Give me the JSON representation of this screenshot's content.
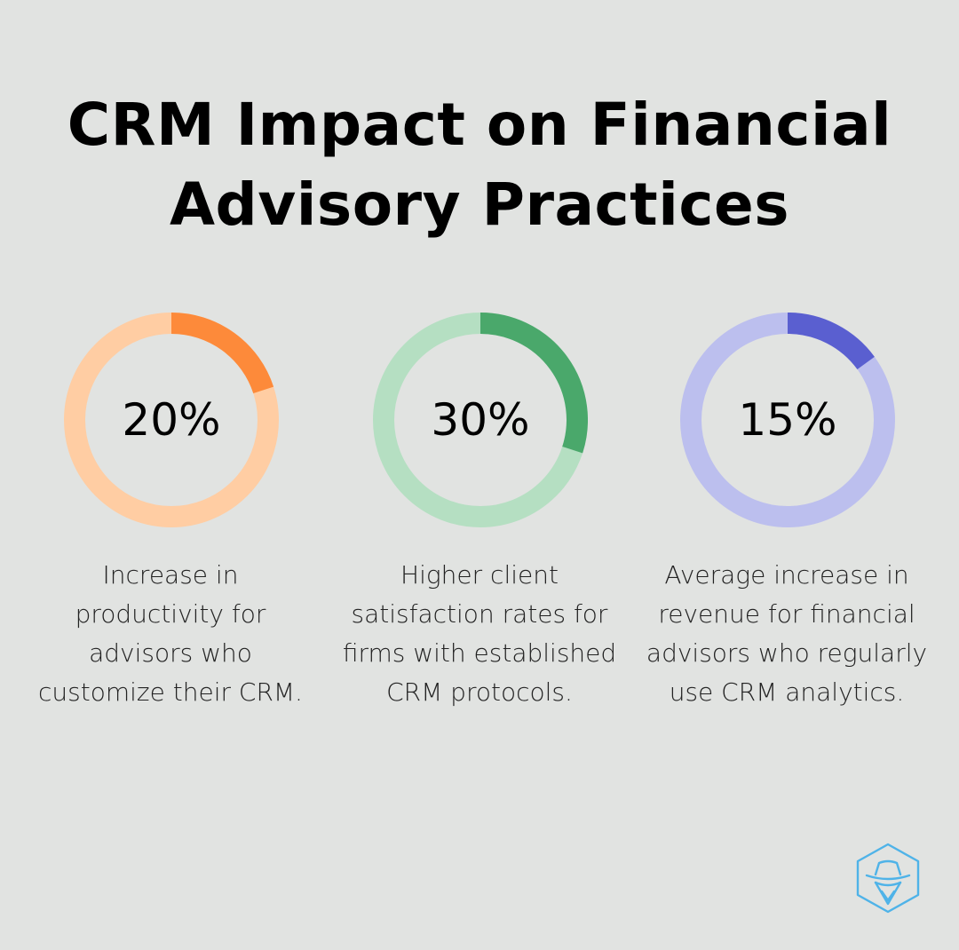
{
  "title_line1": "CRM Impact on Financial",
  "title_line2": "Advisory Practices",
  "chart_data": {
    "type": "pie",
    "title": "CRM Impact on Financial Advisory Practices",
    "items": [
      {
        "value": 20,
        "label": "20%",
        "description": "Increase in productivity for advisors who customize their CRM.",
        "color": "#fd8a3a",
        "track_color": "#ffcda3"
      },
      {
        "value": 30,
        "label": "30%",
        "description": "Higher client satisfaction rates for firms with established CRM protocols.",
        "color": "#4aa86b",
        "track_color": "#b5dfc2"
      },
      {
        "value": 15,
        "label": "15%",
        "description": "Average increase in revenue for financial advisors who regularly use CRM analytics.",
        "color": "#5a5fd0",
        "track_color": "#bcbfee"
      }
    ]
  },
  "logo": {
    "icon": "spy-hat-hexagon-icon",
    "color": "#4fb3e8"
  }
}
